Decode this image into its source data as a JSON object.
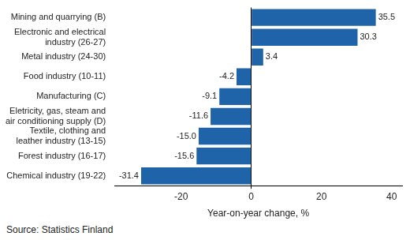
{
  "chart_data": {
    "type": "bar",
    "orientation": "horizontal",
    "categories": [
      "Mining and quarrying (B)",
      "Electronic and electrical\nindustry (26-27)",
      "Metal industry (24-30)",
      "Food industry (10-11)",
      "Manufacturing (C)",
      "Eletricity, gas, steam and\nair conditioning supply (D)",
      "Textile, clothing and\nleather industry (13-15)",
      "Forest industry (16-17)",
      "Chemical industry (19-22)"
    ],
    "values": [
      35.5,
      30.3,
      3.4,
      -4.2,
      -9.1,
      -11.6,
      -15.0,
      -15.6,
      -31.4
    ],
    "value_labels": [
      "35.5",
      "30.3",
      "3.4",
      "-4.2",
      "-9.1",
      "-11.6",
      "-15.0",
      "-15.6",
      "-31.4"
    ],
    "data_labels": true,
    "color": "#1f63a8",
    "x_label": "Year-on-year change, %",
    "xlim": [
      -39,
      43
    ],
    "xticks": [
      -20,
      0,
      20,
      40
    ],
    "grid": false,
    "source": "Source: Statistics Finland"
  }
}
